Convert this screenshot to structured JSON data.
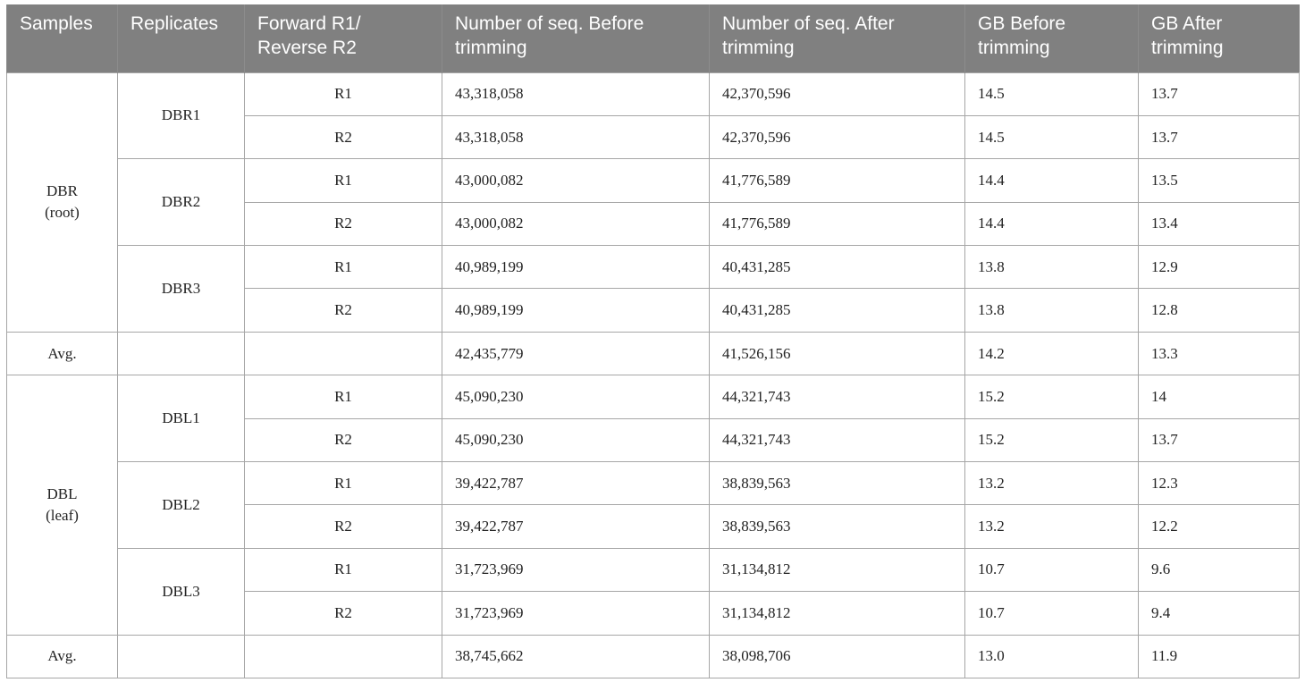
{
  "headers": [
    "Samples",
    "Replicates",
    "Forward R1/ Reverse R2",
    "Number of seq. Before trimming",
    "Number of seq. After trimming",
    "GB Before trimming",
    "GB After trimming"
  ],
  "header_lines": {
    "h2": [
      "Forward R1/",
      "Reverse R2"
    ],
    "h3": [
      "Number of seq. Before",
      "trimming"
    ],
    "h4": [
      "Number of seq. After",
      "trimming"
    ],
    "h5": [
      "GB Before",
      "trimming"
    ],
    "h6": [
      "GB After",
      "trimming"
    ]
  },
  "groups": [
    {
      "sample": "DBR",
      "sample_sub": "(root)",
      "replicates": [
        {
          "name": "DBR1",
          "rows": [
            {
              "read": "R1",
              "before": "43,318,058",
              "after": "42,370,596",
              "gb_before": "14.5",
              "gb_after": "13.7"
            },
            {
              "read": "R2",
              "before": "43,318,058",
              "after": "42,370,596",
              "gb_before": "14.5",
              "gb_after": "13.7"
            }
          ]
        },
        {
          "name": "DBR2",
          "rows": [
            {
              "read": "R1",
              "before": "43,000,082",
              "after": "41,776,589",
              "gb_before": "14.4",
              "gb_after": "13.5"
            },
            {
              "read": "R2",
              "before": "43,000,082",
              "after": "41,776,589",
              "gb_before": "14.4",
              "gb_after": "13.4"
            }
          ]
        },
        {
          "name": "DBR3",
          "rows": [
            {
              "read": "R1",
              "before": "40,989,199",
              "after": "40,431,285",
              "gb_before": "13.8",
              "gb_after": "12.9"
            },
            {
              "read": "R2",
              "before": "40,989,199",
              "after": "40,431,285",
              "gb_before": "13.8",
              "gb_after": "12.8"
            }
          ]
        }
      ],
      "avg": {
        "label": "Avg.",
        "before": "42,435,779",
        "after": "41,526,156",
        "gb_before": "14.2",
        "gb_after": "13.3"
      }
    },
    {
      "sample": "DBL",
      "sample_sub": "(leaf)",
      "replicates": [
        {
          "name": "DBL1",
          "rows": [
            {
              "read": "R1",
              "before": "45,090,230",
              "after": "44,321,743",
              "gb_before": "15.2",
              "gb_after": "14"
            },
            {
              "read": "R2",
              "before": "45,090,230",
              "after": "44,321,743",
              "gb_before": "15.2",
              "gb_after": "13.7"
            }
          ]
        },
        {
          "name": "DBL2",
          "rows": [
            {
              "read": "R1",
              "before": "39,422,787",
              "after": "38,839,563",
              "gb_before": "13.2",
              "gb_after": "12.3"
            },
            {
              "read": "R2",
              "before": "39,422,787",
              "after": "38,839,563",
              "gb_before": "13.2",
              "gb_after": "12.2"
            }
          ]
        },
        {
          "name": "DBL3",
          "rows": [
            {
              "read": "R1",
              "before": "31,723,969",
              "after": "31,134,812",
              "gb_before": "10.7",
              "gb_after": "9.6"
            },
            {
              "read": "R2",
              "before": "31,723,969",
              "after": "31,134,812",
              "gb_before": "10.7",
              "gb_after": "9.4"
            }
          ]
        }
      ],
      "avg": {
        "label": "Avg.",
        "before": "38,745,662",
        "after": "38,098,706",
        "gb_before": "13.0",
        "gb_after": "11.9"
      }
    }
  ],
  "colors": {
    "header_bg": "#808080",
    "header_text": "#ffffff",
    "border": "#a6a6a6"
  }
}
